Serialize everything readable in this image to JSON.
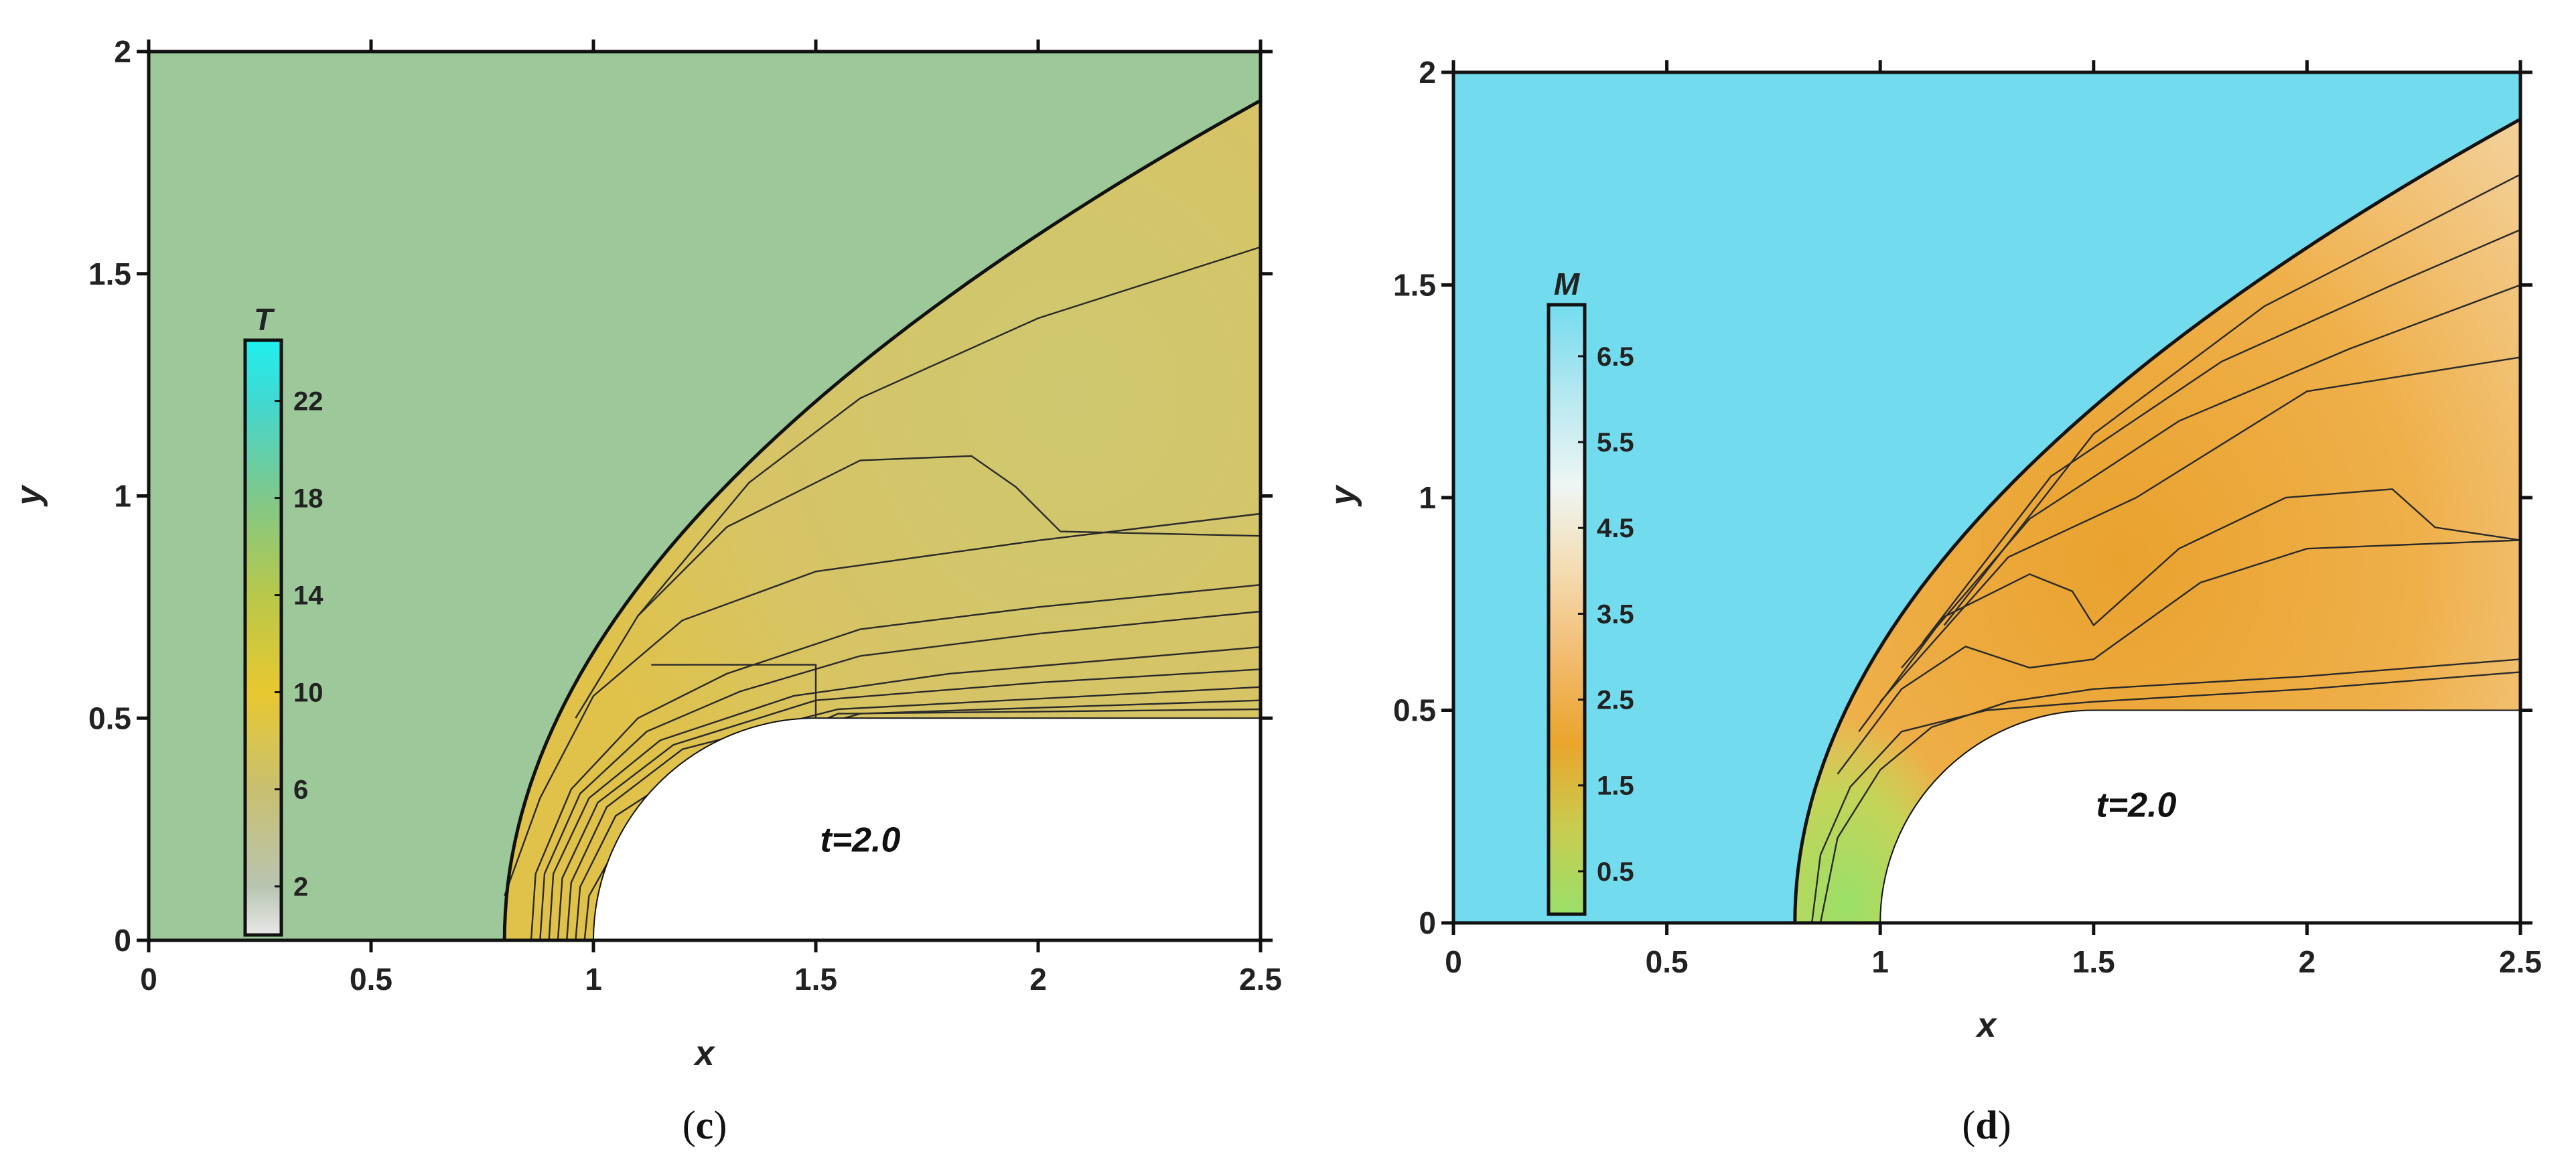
{
  "chart_data": [
    {
      "type": "heatmap",
      "panel_label": "c",
      "colorbar_title": "T",
      "colorbar_ticks": [
        "2",
        "6",
        "10",
        "14",
        "18",
        "22"
      ],
      "colorbar_tick_values": [
        2,
        6,
        10,
        14,
        18,
        22
      ],
      "colorbar_range": [
        0,
        24.5
      ],
      "colorbar_stops": [
        {
          "value": 0,
          "color": "#e8e8e8"
        },
        {
          "value": 2,
          "color": "#b8c4b0"
        },
        {
          "value": 6,
          "color": "#c8c070"
        },
        {
          "value": 10,
          "color": "#e8c830"
        },
        {
          "value": 14,
          "color": "#b8c84a"
        },
        {
          "value": 18,
          "color": "#80c88a"
        },
        {
          "value": 22,
          "color": "#40d8d0"
        },
        {
          "value": 24.5,
          "color": "#20f0f0"
        }
      ],
      "freestream_color": "#9cc89a",
      "shock_layer_color": "#d2c66c",
      "xlabel": "x",
      "ylabel": "y",
      "xlim": [
        0,
        2.5
      ],
      "ylim": [
        0,
        2
      ],
      "xticks": [
        "0",
        "0.5",
        "1",
        "1.5",
        "2",
        "2.5"
      ],
      "xtick_values": [
        0,
        0.5,
        1,
        1.5,
        2,
        2.5
      ],
      "yticks": [
        "0",
        "0.5",
        "1",
        "1.5",
        "2"
      ],
      "ytick_values": [
        0,
        0.5,
        1,
        1.5,
        2
      ],
      "annotation": "t=2.0",
      "annotation_pos": [
        1.6,
        0.2
      ],
      "body": {
        "nose_center": [
          1.5,
          0
        ],
        "nose_radius": 0.5,
        "shoulder_x": 1.5,
        "top_y": 0.5
      },
      "shock": {
        "stagnation_x": 0.8,
        "end": [
          2.5,
          1.89
        ]
      },
      "contours": [
        [
          [
            0.86,
            0
          ],
          [
            0.87,
            0.15
          ],
          [
            0.95,
            0.34
          ],
          [
            1.1,
            0.5
          ],
          [
            1.3,
            0.6
          ],
          [
            1.6,
            0.7
          ],
          [
            2.0,
            0.75
          ],
          [
            2.5,
            0.8
          ]
        ],
        [
          [
            0.88,
            0
          ],
          [
            0.89,
            0.15
          ],
          [
            0.97,
            0.33
          ],
          [
            1.12,
            0.47
          ],
          [
            1.33,
            0.56
          ],
          [
            1.6,
            0.64
          ],
          [
            2.0,
            0.69
          ],
          [
            2.5,
            0.74
          ]
        ],
        [
          [
            0.9,
            0
          ],
          [
            0.91,
            0.15
          ],
          [
            0.99,
            0.32
          ],
          [
            1.15,
            0.45
          ],
          [
            1.45,
            0.55
          ],
          [
            1.8,
            0.6
          ],
          [
            2.5,
            0.66
          ]
        ],
        [
          [
            0.92,
            0
          ],
          [
            0.93,
            0.14
          ],
          [
            1.01,
            0.31
          ],
          [
            1.18,
            0.44
          ],
          [
            1.5,
            0.54
          ],
          [
            2.0,
            0.58
          ],
          [
            2.5,
            0.61
          ]
        ],
        [
          [
            0.94,
            0
          ],
          [
            0.95,
            0.13
          ],
          [
            1.03,
            0.3
          ],
          [
            1.2,
            0.43
          ],
          [
            1.55,
            0.52
          ],
          [
            2.5,
            0.57
          ]
        ],
        [
          [
            0.96,
            0
          ],
          [
            0.97,
            0.12
          ],
          [
            1.05,
            0.28
          ],
          [
            1.25,
            0.41
          ],
          [
            1.6,
            0.51
          ],
          [
            2.5,
            0.54
          ]
        ],
        [
          [
            0.98,
            0
          ],
          [
            0.99,
            0.1
          ],
          [
            1.08,
            0.26
          ],
          [
            1.3,
            0.4
          ],
          [
            1.55,
            0.51
          ],
          [
            2.5,
            0.52
          ]
        ],
        [
          [
            1.13,
            0.62
          ],
          [
            1.5,
            0.62
          ],
          [
            1.5,
            0.5
          ]
        ],
        [
          [
            0.8,
            0.1
          ],
          [
            0.88,
            0.32
          ],
          [
            1.0,
            0.55
          ],
          [
            1.2,
            0.72
          ],
          [
            1.5,
            0.83
          ],
          [
            2.0,
            0.9
          ],
          [
            2.5,
            0.96
          ]
        ],
        [
          [
            0.96,
            0.5
          ],
          [
            1.1,
            0.73
          ],
          [
            1.3,
            0.93
          ],
          [
            1.6,
            1.08
          ],
          [
            1.85,
            1.09
          ],
          [
            1.95,
            1.02
          ],
          [
            2.05,
            0.92
          ],
          [
            2.5,
            0.91
          ]
        ],
        [
          [
            1.1,
            0.73
          ],
          [
            1.35,
            1.03
          ],
          [
            1.6,
            1.22
          ],
          [
            2.0,
            1.4
          ],
          [
            2.5,
            1.56
          ]
        ]
      ]
    },
    {
      "type": "heatmap",
      "panel_label": "d",
      "colorbar_title": "M",
      "colorbar_ticks": [
        "0.5",
        "1.5",
        "2.5",
        "3.5",
        "4.5",
        "5.5",
        "6.5"
      ],
      "colorbar_tick_values": [
        0.5,
        1.5,
        2.5,
        3.5,
        4.5,
        5.5,
        6.5
      ],
      "colorbar_range": [
        0,
        7.1
      ],
      "colorbar_stops": [
        {
          "value": 0,
          "color": "#9ae06a"
        },
        {
          "value": 1.0,
          "color": "#c8cc50"
        },
        {
          "value": 2.0,
          "color": "#eaa52c"
        },
        {
          "value": 3.0,
          "color": "#f2bc70"
        },
        {
          "value": 4.0,
          "color": "#f4dcb2"
        },
        {
          "value": 5.0,
          "color": "#eef6f4"
        },
        {
          "value": 6.0,
          "color": "#b8e8f0"
        },
        {
          "value": 7.1,
          "color": "#74dcee"
        }
      ],
      "freestream_color": "#72dcee",
      "shock_layer_color": "#eeaa3c",
      "xlabel": "x",
      "ylabel": "y",
      "xlim": [
        0,
        2.5
      ],
      "ylim": [
        0,
        2
      ],
      "xticks": [
        "0",
        "0.5",
        "1",
        "1.5",
        "2",
        "2.5"
      ],
      "xtick_values": [
        0,
        0.5,
        1,
        1.5,
        2,
        2.5
      ],
      "yticks": [
        "0",
        "0.5",
        "1",
        "1.5",
        "2"
      ],
      "ytick_values": [
        0,
        0.5,
        1,
        1.5,
        2
      ],
      "annotation": "t=2.0",
      "annotation_pos": [
        1.6,
        0.25
      ],
      "body": {
        "nose_center": [
          1.5,
          0
        ],
        "nose_radius": 0.5,
        "shoulder_x": 1.5,
        "top_y": 0.5
      },
      "shock": {
        "stagnation_x": 0.8,
        "end": [
          2.5,
          1.89
        ]
      },
      "contours": [
        [
          [
            0.84,
            0
          ],
          [
            0.86,
            0.16
          ],
          [
            0.93,
            0.32
          ],
          [
            1.05,
            0.45
          ],
          [
            1.25,
            0.5
          ],
          [
            1.5,
            0.52
          ],
          [
            2.0,
            0.55
          ],
          [
            2.5,
            0.59
          ]
        ],
        [
          [
            0.86,
            0
          ],
          [
            0.9,
            0.2
          ],
          [
            1.0,
            0.36
          ],
          [
            1.12,
            0.46
          ],
          [
            1.3,
            0.52
          ],
          [
            1.5,
            0.55
          ],
          [
            2.0,
            0.58
          ],
          [
            2.5,
            0.62
          ]
        ],
        [
          [
            0.9,
            0.35
          ],
          [
            1.05,
            0.55
          ],
          [
            1.2,
            0.65
          ],
          [
            1.35,
            0.6
          ],
          [
            1.5,
            0.62
          ],
          [
            1.75,
            0.8
          ],
          [
            2.0,
            0.88
          ],
          [
            2.5,
            0.9
          ]
        ],
        [
          [
            0.95,
            0.45
          ],
          [
            1.15,
            0.72
          ],
          [
            1.35,
            0.82
          ],
          [
            1.45,
            0.78
          ],
          [
            1.5,
            0.7
          ],
          [
            1.7,
            0.88
          ],
          [
            1.95,
            1.0
          ],
          [
            2.2,
            1.02
          ],
          [
            2.3,
            0.93
          ],
          [
            2.5,
            0.9
          ]
        ],
        [
          [
            1.0,
            0.52
          ],
          [
            1.3,
            0.86
          ],
          [
            1.6,
            1.0
          ],
          [
            2.0,
            1.25
          ],
          [
            2.5,
            1.33
          ]
        ],
        [
          [
            1.05,
            0.6
          ],
          [
            1.35,
            0.95
          ],
          [
            1.7,
            1.18
          ],
          [
            2.1,
            1.35
          ],
          [
            2.5,
            1.5
          ]
        ],
        [
          [
            1.1,
            0.66
          ],
          [
            1.4,
            1.05
          ],
          [
            1.8,
            1.32
          ],
          [
            2.2,
            1.5
          ],
          [
            2.5,
            1.63
          ]
        ],
        [
          [
            1.15,
            0.7
          ],
          [
            1.5,
            1.15
          ],
          [
            1.9,
            1.45
          ],
          [
            2.5,
            1.76
          ]
        ]
      ]
    }
  ]
}
